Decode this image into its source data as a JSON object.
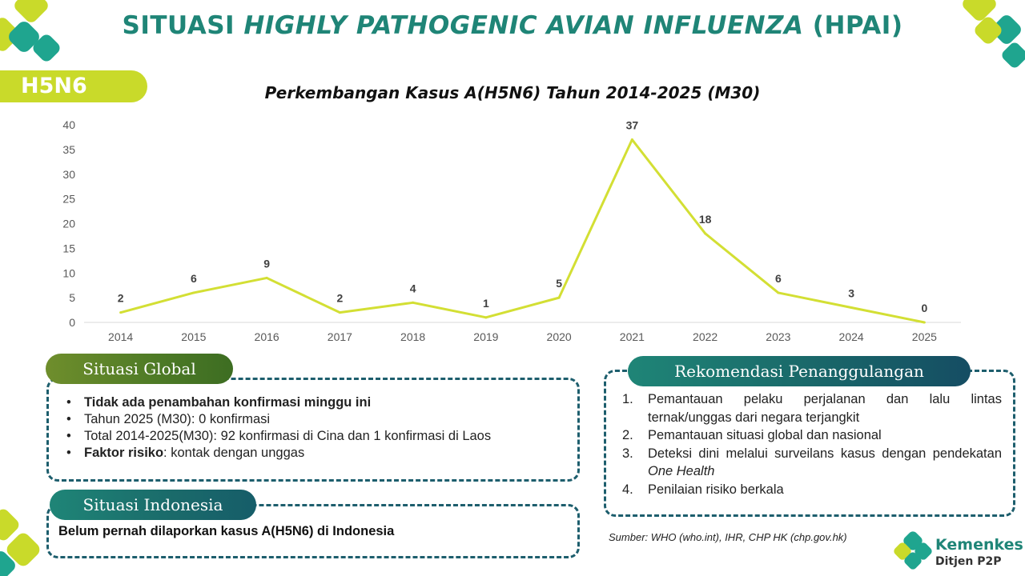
{
  "header": {
    "title_part1": "SITUASI ",
    "title_italic": "HIGHLY PATHOGENIC AVIAN INFLUENZA",
    "title_part2": " (HPAI)",
    "tag": "H5N6"
  },
  "chart_data": {
    "type": "line",
    "title": "Perkembangan Kasus A(H5N6) Tahun 2014-2025 (M30)",
    "categories": [
      "2014",
      "2015",
      "2016",
      "2017",
      "2018",
      "2019",
      "2020",
      "2021",
      "2022",
      "2023",
      "2024",
      "2025"
    ],
    "values": [
      2,
      6,
      9,
      2,
      4,
      1,
      5,
      37,
      18,
      6,
      3,
      0
    ],
    "yticks": [
      0,
      5,
      10,
      15,
      20,
      25,
      30,
      35,
      40
    ],
    "ylim": [
      0,
      40
    ],
    "line_color": "#d3df34",
    "grid": false,
    "data_labels": true
  },
  "global": {
    "title": "Situasi Global",
    "item1": "Tidak ada penambahan konfirmasi minggu ini",
    "item2": "Tahun 2025 (M30): 0 konfirmasi",
    "item3": "Total 2014-2025(M30): 92 konfirmasi di Cina dan 1 konfirmasi di Laos",
    "item4_bold": "Faktor risiko",
    "item4_rest": ": kontak dengan unggas"
  },
  "indonesia": {
    "title": "Situasi Indonesia",
    "text": "Belum pernah dilaporkan kasus A(H5N6) di Indonesia"
  },
  "rekomendasi": {
    "title": "Rekomendasi Penanggulangan",
    "n1": "1.",
    "item1": "Pemantauan pelaku perjalanan dan lalu lintas ternak/unggas dari negara terjangkit",
    "n2": "2.",
    "item2": "Pemantauan situasi global dan nasional",
    "n3": "3.",
    "item3_a": "Deteksi dini melalui surveilans kasus dengan pendekatan ",
    "item3_b": "One Health",
    "n4": "4.",
    "item4": "Penilaian risiko berkala"
  },
  "source": "Sumber: WHO (who.int), IHR, CHP HK (chp.gov.hk)",
  "logo": {
    "name": "Kemenkes",
    "sub": "Ditjen P2P"
  },
  "colors": {
    "teal": "#1f8577",
    "lime": "#c9da2a",
    "navy": "#1d5e6d",
    "olive": "#5a8228"
  }
}
